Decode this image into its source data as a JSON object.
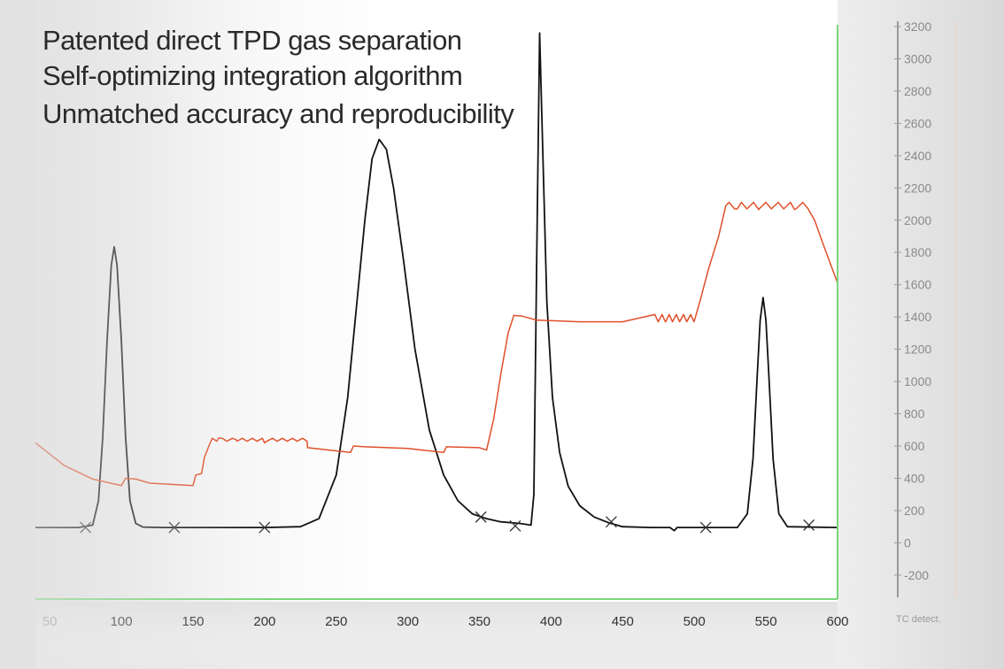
{
  "headlines": [
    "Patented direct TPD gas separation",
    "Self-optimizing integration algorithm",
    "Unmatched accuracy and reproducibility"
  ],
  "colors": {
    "detector_signal": "#111111",
    "temperature_trace": "#e0502a",
    "plot_border": "#7bd67b",
    "background": "#e2e2e2"
  },
  "chart_data": {
    "type": "line",
    "x_axis": {
      "range": [
        40,
        600
      ],
      "ticks": [
        "50",
        "100",
        "150",
        "200",
        "250",
        "300",
        "350",
        "400",
        "450",
        "500",
        "550",
        "600"
      ]
    },
    "y_axis_right": {
      "label": "TC detect.",
      "range": [
        -250,
        3200
      ],
      "ticks": [
        "3200",
        "3000",
        "2800",
        "2600",
        "2400",
        "2200",
        "2000",
        "1800",
        "1600",
        "1400",
        "1200",
        "1000",
        "800",
        "600",
        "400",
        "200",
        "0",
        "-200"
      ]
    },
    "grid": false,
    "series": [
      {
        "key": "detector",
        "color": "#111111",
        "points": [
          [
            40,
            95
          ],
          [
            70,
            95
          ],
          [
            80,
            110
          ],
          [
            84,
            260
          ],
          [
            87,
            650
          ],
          [
            90,
            1250
          ],
          [
            93,
            1720
          ],
          [
            95,
            1835
          ],
          [
            97,
            1720
          ],
          [
            100,
            1250
          ],
          [
            103,
            650
          ],
          [
            106,
            260
          ],
          [
            110,
            120
          ],
          [
            115,
            98
          ],
          [
            130,
            95
          ],
          [
            200,
            95
          ],
          [
            225,
            100
          ],
          [
            238,
            150
          ],
          [
            250,
            420
          ],
          [
            258,
            900
          ],
          [
            264,
            1450
          ],
          [
            270,
            2000
          ],
          [
            275,
            2380
          ],
          [
            280,
            2500
          ],
          [
            285,
            2440
          ],
          [
            290,
            2200
          ],
          [
            297,
            1750
          ],
          [
            305,
            1200
          ],
          [
            315,
            700
          ],
          [
            325,
            420
          ],
          [
            335,
            260
          ],
          [
            345,
            180
          ],
          [
            355,
            150
          ],
          [
            365,
            130
          ],
          [
            378,
            120
          ],
          [
            386,
            110
          ],
          [
            388,
            300
          ],
          [
            390,
            1800
          ],
          [
            392,
            3160
          ],
          [
            394,
            2500
          ],
          [
            397,
            1500
          ],
          [
            401,
            900
          ],
          [
            406,
            560
          ],
          [
            412,
            350
          ],
          [
            420,
            230
          ],
          [
            430,
            160
          ],
          [
            440,
            125
          ],
          [
            450,
            100
          ],
          [
            470,
            95
          ],
          [
            483,
            95
          ],
          [
            486,
            75
          ],
          [
            488,
            95
          ],
          [
            500,
            95
          ],
          [
            530,
            95
          ],
          [
            537,
            180
          ],
          [
            541,
            520
          ],
          [
            544,
            1050
          ],
          [
            546,
            1380
          ],
          [
            548,
            1520
          ],
          [
            550,
            1380
          ],
          [
            552,
            1050
          ],
          [
            555,
            520
          ],
          [
            559,
            180
          ],
          [
            565,
            100
          ],
          [
            600,
            95
          ]
        ]
      },
      {
        "key": "temperature",
        "color": "#e0502a",
        "points": [
          [
            40,
            620
          ],
          [
            60,
            480
          ],
          [
            80,
            395
          ],
          [
            100,
            355
          ],
          [
            103,
            400
          ],
          [
            110,
            395
          ],
          [
            120,
            370
          ],
          [
            150,
            355
          ],
          [
            152,
            420
          ],
          [
            156,
            430
          ],
          [
            158,
            530
          ],
          [
            162,
            620
          ],
          [
            168,
            650
          ],
          [
            180,
            640
          ],
          [
            200,
            620
          ],
          [
            230,
            590
          ],
          [
            260,
            560
          ],
          [
            262,
            600
          ],
          [
            270,
            595
          ],
          [
            300,
            585
          ],
          [
            320,
            565
          ],
          [
            325,
            560
          ],
          [
            327,
            595
          ],
          [
            350,
            590
          ],
          [
            355,
            575
          ],
          [
            360,
            770
          ],
          [
            365,
            1050
          ],
          [
            370,
            1300
          ],
          [
            374,
            1410
          ],
          [
            380,
            1405
          ],
          [
            390,
            1380
          ],
          [
            420,
            1370
          ],
          [
            450,
            1370
          ],
          [
            480,
            1370
          ],
          [
            500,
            1375
          ],
          [
            504,
            1500
          ],
          [
            510,
            1700
          ],
          [
            517,
            1900
          ],
          [
            522,
            2090
          ],
          [
            530,
            2070
          ],
          [
            545,
            2065
          ],
          [
            570,
            2065
          ],
          [
            580,
            2060
          ],
          [
            584,
            2000
          ],
          [
            590,
            1850
          ],
          [
            600,
            1610
          ]
        ],
        "zigzag": [
          [
            470,
            500,
            1370,
            45,
            6
          ],
          [
            520,
            580,
            2070,
            40,
            7
          ],
          [
            160,
            230,
            630,
            18,
            10
          ]
        ]
      }
    ],
    "baseline_markers": [
      [
        75,
        95
      ],
      [
        137,
        95
      ],
      [
        200,
        95
      ],
      [
        351,
        160
      ],
      [
        375,
        105
      ],
      [
        442,
        130
      ],
      [
        508,
        95
      ],
      [
        580,
        110
      ]
    ]
  }
}
